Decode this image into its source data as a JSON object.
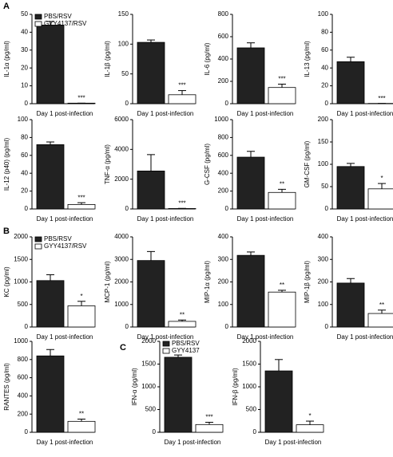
{
  "panel_labels": [
    "A",
    "B",
    "C"
  ],
  "chart_data": [
    {
      "type": "bar",
      "ylabel": "IL-1α (pg/ml)",
      "categories": [
        "Day 1 post-infection"
      ],
      "ylim": [
        0,
        50
      ],
      "yticks": [
        0,
        10,
        20,
        30,
        40,
        50
      ],
      "series": [
        {
          "name": "PBS/RSV",
          "color": "#222222",
          "values": [
            44
          ],
          "errors": [
            2
          ]
        },
        {
          "name": "GYY4137/RSV",
          "color": "#ffffff",
          "values": [
            0.3
          ],
          "errors": [
            0
          ],
          "annotation": "***"
        }
      ]
    },
    {
      "type": "bar",
      "ylabel": "IL-1β (pg/ml)",
      "categories": [
        "Day 1 post-infection"
      ],
      "ylim": [
        0,
        150
      ],
      "yticks": [
        0,
        50,
        100,
        150
      ],
      "series": [
        {
          "color": "#222222",
          "values": [
            103
          ],
          "errors": [
            4
          ]
        },
        {
          "color": "#ffffff",
          "values": [
            15
          ],
          "errors": [
            7
          ],
          "annotation": "***"
        }
      ]
    },
    {
      "type": "bar",
      "ylabel": "IL-6 (pg/ml)",
      "categories": [
        "Day 1 post-infection"
      ],
      "ylim": [
        0,
        800
      ],
      "yticks": [
        0,
        200,
        400,
        600,
        800
      ],
      "series": [
        {
          "color": "#222222",
          "values": [
            500
          ],
          "errors": [
            45
          ]
        },
        {
          "color": "#ffffff",
          "values": [
            145
          ],
          "errors": [
            30
          ],
          "annotation": "***"
        }
      ]
    },
    {
      "type": "bar",
      "ylabel": "IL-13 (pg/ml)",
      "categories": [
        "Day 1 post-infection"
      ],
      "ylim": [
        0,
        100
      ],
      "yticks": [
        0,
        20,
        40,
        60,
        80,
        100
      ],
      "series": [
        {
          "color": "#222222",
          "values": [
            47
          ],
          "errors": [
            5
          ]
        },
        {
          "color": "#ffffff",
          "values": [
            0.3
          ],
          "errors": [
            0
          ],
          "annotation": "***"
        }
      ]
    },
    {
      "type": "bar",
      "ylabel": "IL-12 (p40) (pg/ml)",
      "categories": [
        "Day 1 post-infection"
      ],
      "ylim": [
        0,
        100
      ],
      "yticks": [
        0,
        20,
        40,
        60,
        80,
        100
      ],
      "series": [
        {
          "color": "#222222",
          "values": [
            72
          ],
          "errors": [
            3
          ]
        },
        {
          "color": "#ffffff",
          "values": [
            5
          ],
          "errors": [
            2
          ],
          "annotation": "***"
        }
      ]
    },
    {
      "type": "bar",
      "ylabel": "TNF-α (pg/ml)",
      "categories": [
        "Day 1 post-infection"
      ],
      "ylim": [
        0,
        6000
      ],
      "yticks": [
        0,
        2000,
        4000,
        6000
      ],
      "series": [
        {
          "color": "#222222",
          "values": [
            2550
          ],
          "errors": [
            1100
          ]
        },
        {
          "color": "#ffffff",
          "values": [
            30
          ],
          "errors": [
            10
          ],
          "annotation": "***"
        }
      ]
    },
    {
      "type": "bar",
      "ylabel": "G-CSF (pg/ml)",
      "categories": [
        "Day 1 post-infection"
      ],
      "ylim": [
        0,
        1000
      ],
      "yticks": [
        0,
        200,
        400,
        600,
        800,
        1000
      ],
      "series": [
        {
          "color": "#222222",
          "values": [
            580
          ],
          "errors": [
            65
          ]
        },
        {
          "color": "#ffffff",
          "values": [
            185
          ],
          "errors": [
            35
          ],
          "annotation": "**"
        }
      ]
    },
    {
      "type": "bar",
      "ylabel": "GM-CSF (pg/ml)",
      "categories": [
        "Day 1 post-infection"
      ],
      "ylim": [
        0,
        200
      ],
      "yticks": [
        0,
        50,
        100,
        150,
        200
      ],
      "series": [
        {
          "color": "#222222",
          "values": [
            95
          ],
          "errors": [
            7
          ]
        },
        {
          "color": "#ffffff",
          "values": [
            45
          ],
          "errors": [
            12
          ],
          "annotation": "*"
        }
      ]
    },
    {
      "type": "bar",
      "ylabel": "KC (pg/ml)",
      "categories": [
        "Day 1 post-infection"
      ],
      "ylim": [
        0,
        2000
      ],
      "yticks": [
        0,
        500,
        1000,
        1500,
        2000
      ],
      "series": [
        {
          "name": "PBS/RSV",
          "color": "#222222",
          "values": [
            1030
          ],
          "errors": [
            130
          ]
        },
        {
          "name": "GYY4137/RSV",
          "color": "#ffffff",
          "values": [
            470
          ],
          "errors": [
            100
          ],
          "annotation": "*"
        }
      ]
    },
    {
      "type": "bar",
      "ylabel": "MCP-1 (pg/ml)",
      "categories": [
        "Day 1 post-infection"
      ],
      "ylim": [
        0,
        4000
      ],
      "yticks": [
        0,
        1000,
        2000,
        3000,
        4000
      ],
      "series": [
        {
          "color": "#222222",
          "values": [
            2950
          ],
          "errors": [
            400
          ]
        },
        {
          "color": "#ffffff",
          "values": [
            250
          ],
          "errors": [
            60
          ],
          "annotation": "**"
        }
      ]
    },
    {
      "type": "bar",
      "ylabel": "MIP-1α (pg/ml)",
      "categories": [
        "Day 1 post-infection"
      ],
      "ylim": [
        0,
        400
      ],
      "yticks": [
        0,
        100,
        200,
        300,
        400
      ],
      "series": [
        {
          "color": "#222222",
          "values": [
            318
          ],
          "errors": [
            15
          ]
        },
        {
          "color": "#ffffff",
          "values": [
            155
          ],
          "errors": [
            8
          ],
          "annotation": "**"
        }
      ]
    },
    {
      "type": "bar",
      "ylabel": "MIP-1β (pg/ml)",
      "categories": [
        "Day 1 post-infection"
      ],
      "ylim": [
        0,
        400
      ],
      "yticks": [
        0,
        100,
        200,
        300,
        400
      ],
      "series": [
        {
          "color": "#222222",
          "values": [
            195
          ],
          "errors": [
            20
          ]
        },
        {
          "color": "#ffffff",
          "values": [
            60
          ],
          "errors": [
            15
          ],
          "annotation": "**"
        }
      ]
    },
    {
      "type": "bar",
      "ylabel": "RANTES (pg/ml)",
      "categories": [
        "Day 1 post-infection"
      ],
      "ylim": [
        0,
        1000
      ],
      "yticks": [
        0,
        200,
        400,
        600,
        800,
        1000
      ],
      "series": [
        {
          "color": "#222222",
          "values": [
            840
          ],
          "errors": [
            70
          ]
        },
        {
          "color": "#ffffff",
          "values": [
            120
          ],
          "errors": [
            25
          ],
          "annotation": "**"
        }
      ]
    },
    {
      "type": "bar",
      "ylabel": "IFN-α (pg/ml)",
      "categories": [
        "Day 1 post-infection"
      ],
      "ylim": [
        0,
        2000
      ],
      "yticks": [
        0,
        500,
        1000,
        1500,
        2000
      ],
      "series": [
        {
          "name": "PBS/RSV",
          "color": "#222222",
          "values": [
            1650
          ],
          "errors": [
            50
          ]
        },
        {
          "name": "GYY4137",
          "color": "#ffffff",
          "values": [
            170
          ],
          "errors": [
            50
          ],
          "annotation": "***"
        }
      ]
    },
    {
      "type": "bar",
      "ylabel": "IFN-β (pg/ml)",
      "categories": [
        "Day 1 post-infection"
      ],
      "ylim": [
        0,
        2000
      ],
      "yticks": [
        0,
        500,
        1000,
        1500,
        2000
      ],
      "series": [
        {
          "color": "#222222",
          "values": [
            1350
          ],
          "errors": [
            250
          ]
        },
        {
          "color": "#ffffff",
          "values": [
            165
          ],
          "errors": [
            80
          ],
          "annotation": "*"
        }
      ]
    }
  ]
}
